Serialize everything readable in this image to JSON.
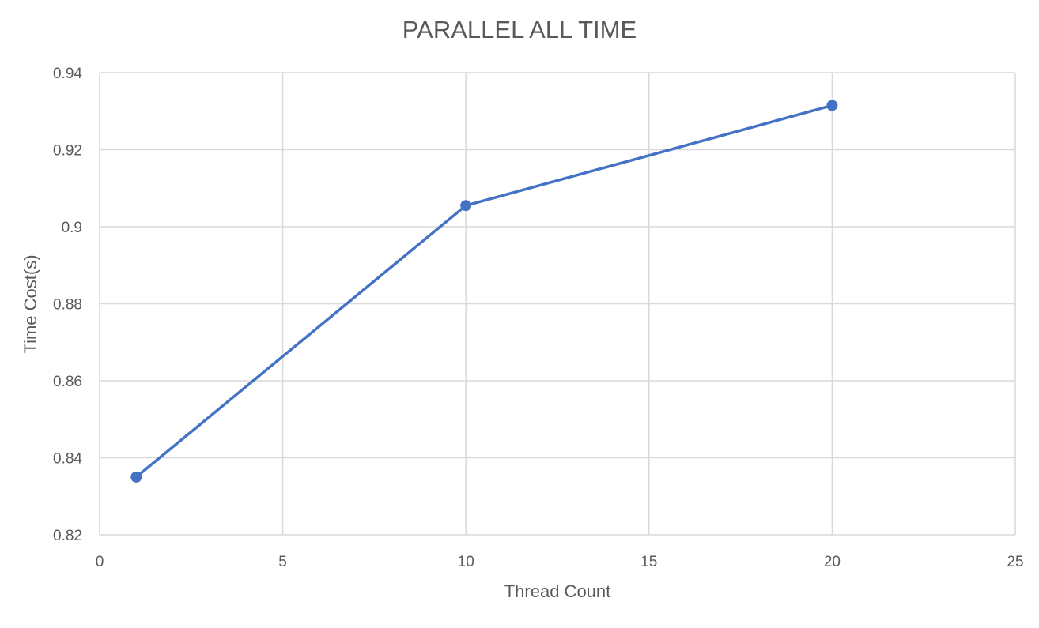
{
  "chart_data": {
    "type": "scatter",
    "title": "PARALLEL ALL TIME",
    "xlabel": "Thread Count",
    "ylabel": "Time Cost(s)",
    "xlim": [
      0,
      25
    ],
    "ylim": [
      0.82,
      0.94
    ],
    "x_ticks": [
      "0",
      "5",
      "10",
      "15",
      "20",
      "25"
    ],
    "y_ticks": [
      "0.82",
      "0.84",
      "0.86",
      "0.88",
      "0.9",
      "0.92",
      "0.94"
    ],
    "grid": true,
    "legend": "none",
    "markers": true,
    "series": [
      {
        "color": "#4472c4",
        "x": [
          1,
          10,
          20
        ],
        "y": [
          0.835,
          0.9055,
          0.9315
        ]
      }
    ]
  }
}
